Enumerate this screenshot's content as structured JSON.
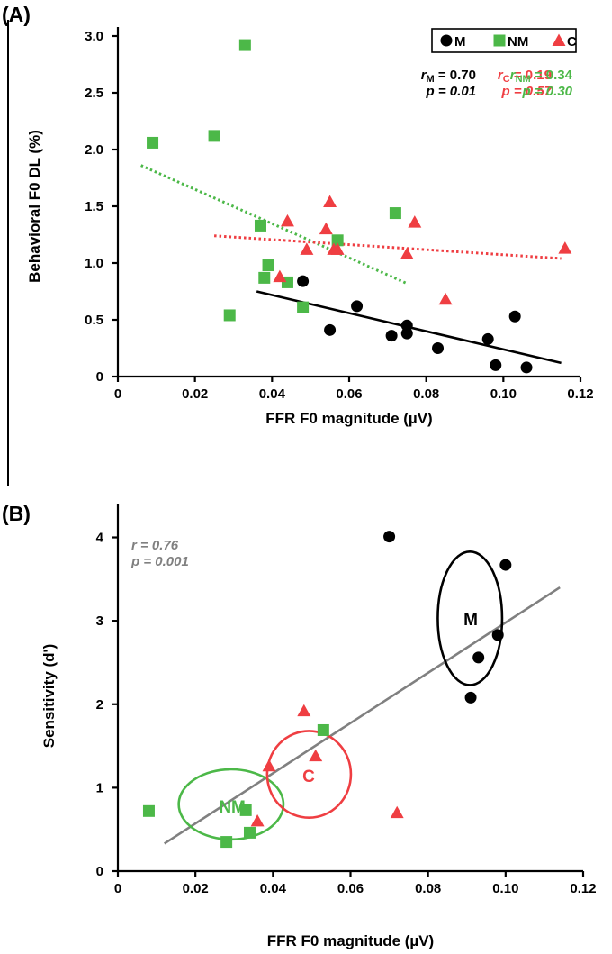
{
  "colors": {
    "M": "#000000",
    "NM": "#4cb848",
    "C": "#ef3e42",
    "combined_fit": "#808080"
  },
  "chart_data": [
    {
      "type": "scatter",
      "panel_label": "(A)",
      "xlabel": "FFR F0 magnitude (µV)",
      "ylabel": "Behavioral F0 DL (%)",
      "xlim": [
        0,
        0.12
      ],
      "ylim": [
        0,
        3.0
      ],
      "x_ticks": [
        0,
        0.02,
        0.04,
        0.06,
        0.08,
        0.1,
        0.12
      ],
      "x_tick_labels": [
        "0",
        "0.02",
        "0.04",
        "0.06",
        "0.08",
        "0.10",
        "0.12"
      ],
      "y_ticks": [
        0,
        0.5,
        1.0,
        1.5,
        2.0,
        2.5,
        3.0
      ],
      "y_tick_labels": [
        "0",
        "0.5",
        "1.0",
        "1.5",
        "2.0",
        "2.5",
        "3.0"
      ],
      "legend": {
        "position": "top-right",
        "entries": [
          {
            "series": "M",
            "label": "M",
            "marker": "circle"
          },
          {
            "series": "NM",
            "label": "NM",
            "marker": "square"
          },
          {
            "series": "C",
            "label": "C",
            "marker": "triangle"
          }
        ]
      },
      "stats": [
        {
          "series": "M",
          "r_symbol": "r",
          "r_sub": "M",
          "r_value": " = 0.70",
          "p_text": "p = 0.01"
        },
        {
          "series": "C",
          "r_symbol": "r",
          "r_sub": "C",
          "r_value": " = 0.19",
          "p_text": "p = 0.57"
        },
        {
          "series": "NM",
          "r_symbol": "r",
          "r_sub": "NM",
          "r_value": " = 0.34",
          "p_text": "p = 0.30"
        }
      ],
      "series": [
        {
          "name": "M",
          "marker": "circle",
          "x": [
            0.048,
            0.055,
            0.062,
            0.071,
            0.075,
            0.075,
            0.083,
            0.096,
            0.098,
            0.103,
            0.106
          ],
          "y": [
            0.84,
            0.41,
            0.62,
            0.36,
            0.45,
            0.38,
            0.25,
            0.33,
            0.1,
            0.53,
            0.08
          ],
          "fit": {
            "x": [
              0.036,
              0.115
            ],
            "y": [
              0.75,
              0.12
            ],
            "style": "solid"
          }
        },
        {
          "name": "NM",
          "marker": "square",
          "x": [
            0.009,
            0.025,
            0.033,
            0.037,
            0.038,
            0.039,
            0.044,
            0.029,
            0.048,
            0.057,
            0.072
          ],
          "y": [
            2.06,
            2.12,
            2.92,
            1.33,
            0.87,
            0.98,
            0.83,
            0.54,
            0.61,
            1.2,
            1.44
          ],
          "fit": {
            "x": [
              0.006,
              0.075
            ],
            "y": [
              1.86,
              0.82
            ],
            "style": "dotted"
          }
        },
        {
          "name": "C",
          "marker": "triangle",
          "x": [
            0.044,
            0.042,
            0.049,
            0.054,
            0.055,
            0.056,
            0.057,
            0.075,
            0.077,
            0.085,
            0.116
          ],
          "y": [
            1.37,
            0.88,
            1.12,
            1.3,
            1.54,
            1.12,
            1.12,
            1.08,
            1.36,
            0.68,
            1.13
          ],
          "fit": {
            "x": [
              0.025,
              0.115
            ],
            "y": [
              1.24,
              1.04
            ],
            "style": "dotted"
          }
        }
      ]
    },
    {
      "type": "scatter",
      "panel_label": "(B)",
      "xlabel": "FFR F0 magnitude (µV)",
      "ylabel": "Sensitivity (d')",
      "xlim": [
        0,
        0.12
      ],
      "ylim": [
        0,
        4.2
      ],
      "x_ticks": [
        0,
        0.02,
        0.04,
        0.06,
        0.08,
        0.1,
        0.12
      ],
      "x_tick_labels": [
        "0",
        "0.02",
        "0.04",
        "0.06",
        "0.08",
        "0.10",
        "0.12"
      ],
      "y_ticks": [
        0,
        1,
        2,
        3,
        4
      ],
      "y_tick_labels": [
        "0",
        "1",
        "2",
        "3",
        "4"
      ],
      "stats": [
        {
          "r_text": "r = 0.76",
          "p_text": "p = 0.001"
        }
      ],
      "fit": {
        "x": [
          0.012,
          0.114
        ],
        "y": [
          0.33,
          3.4
        ]
      },
      "series": [
        {
          "name": "M",
          "marker": "circle",
          "x": [
            0.07,
            0.1,
            0.098,
            0.093,
            0.091
          ],
          "y": [
            4.01,
            3.67,
            2.83,
            2.56,
            2.08
          ],
          "ellipse": {
            "cx": 0.0908,
            "cy": 3.03,
            "rx": 0.0083,
            "ry": 0.8
          }
        },
        {
          "name": "NM",
          "marker": "square",
          "x": [
            0.008,
            0.028,
            0.033,
            0.034,
            0.053
          ],
          "y": [
            0.72,
            0.35,
            0.73,
            0.46,
            1.69
          ],
          "ellipse": {
            "cx": 0.0292,
            "cy": 0.8,
            "rx": 0.0135,
            "ry": 0.42
          }
        },
        {
          "name": "C",
          "marker": "triangle",
          "x": [
            0.039,
            0.036,
            0.048,
            0.051,
            0.072
          ],
          "y": [
            1.26,
            0.6,
            1.92,
            1.38,
            0.7
          ],
          "ellipse": {
            "cx": 0.0493,
            "cy": 1.16,
            "rx": 0.0108,
            "ry": 0.52
          }
        }
      ],
      "group_labels": [
        {
          "series": "M",
          "text": "M",
          "x": 0.091,
          "y": 2.95
        },
        {
          "series": "NM",
          "text": "NM",
          "x": 0.0295,
          "y": 0.7
        },
        {
          "series": "C",
          "text": "C",
          "x": 0.0492,
          "y": 1.07
        }
      ]
    }
  ]
}
